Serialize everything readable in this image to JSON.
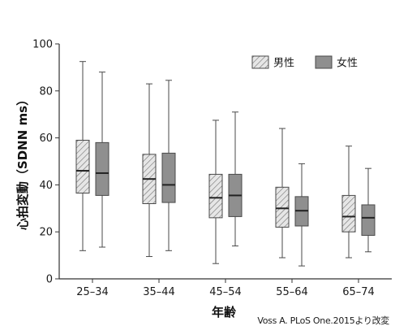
{
  "chart_data": {
    "type": "boxplot",
    "xlabel": "年齢",
    "ylabel": "心拍変動（SDNN ms）",
    "ylim": [
      0,
      100
    ],
    "yticks": [
      0,
      20,
      40,
      60,
      80,
      100
    ],
    "grid": false,
    "legend_position": "top-right",
    "categories": [
      "25–34",
      "35–44",
      "45–54",
      "55–64",
      "65–74"
    ],
    "series": [
      {
        "name": "男性",
        "style": "hatched",
        "boxes": [
          {
            "min": 12,
            "q1": 36.5,
            "median": 46,
            "q3": 59,
            "max": 92.5
          },
          {
            "min": 9.5,
            "q1": 32,
            "median": 42.5,
            "q3": 53,
            "max": 83
          },
          {
            "min": 6.5,
            "q1": 26,
            "median": 34.5,
            "q3": 44.5,
            "max": 67.5
          },
          {
            "min": 9,
            "q1": 22,
            "median": 30,
            "q3": 39,
            "max": 64
          },
          {
            "min": 9,
            "q1": 20,
            "median": 26.5,
            "q3": 35.5,
            "max": 56.5
          }
        ]
      },
      {
        "name": "女性",
        "style": "solid",
        "boxes": [
          {
            "min": 13.5,
            "q1": 35.5,
            "median": 45,
            "q3": 58,
            "max": 88
          },
          {
            "min": 12,
            "q1": 32.5,
            "median": 40,
            "q3": 53.5,
            "max": 84.5
          },
          {
            "min": 14,
            "q1": 26.5,
            "median": 35.5,
            "q3": 44.5,
            "max": 71
          },
          {
            "min": 5.5,
            "q1": 22.5,
            "median": 29,
            "q3": 35,
            "max": 49
          },
          {
            "min": 11.5,
            "q1": 18.5,
            "median": 26,
            "q3": 31.5,
            "max": 47
          }
        ]
      }
    ],
    "source": "Voss A. PLoS One.2015より改変"
  },
  "colors": {
    "male_fill": "#e6e6e6",
    "male_hatch": "#666666",
    "female_fill": "#8f8f8f",
    "stroke": "#4a4a4a",
    "axis": "#333333"
  }
}
